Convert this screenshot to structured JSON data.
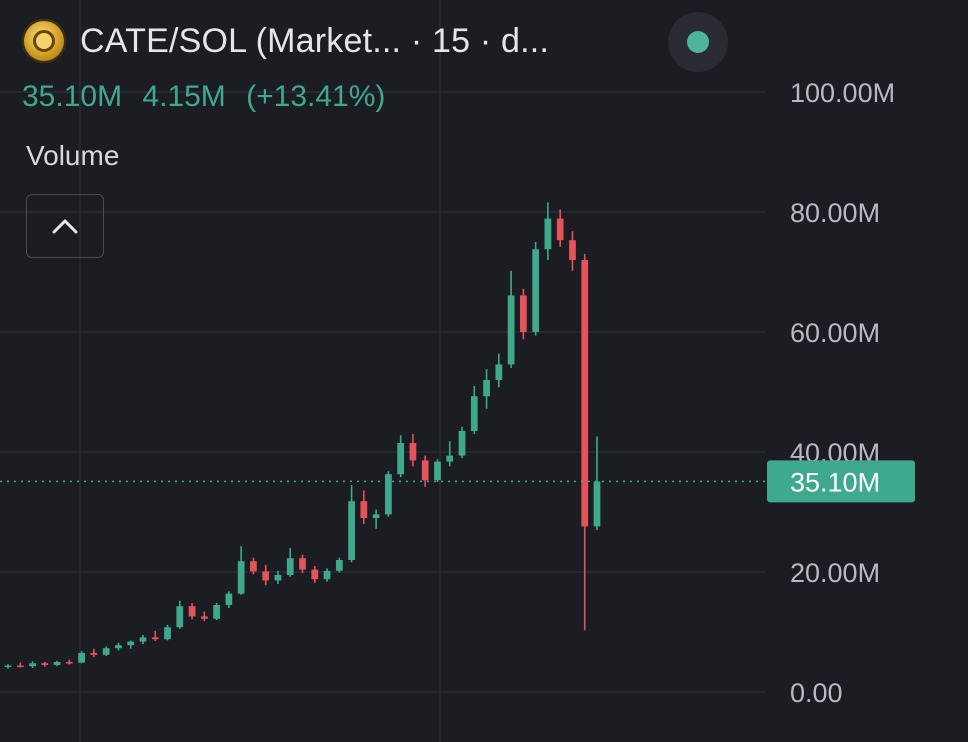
{
  "header": {
    "logo_icon": "coin-logo-icon",
    "title": "CATE/SOL (Market...  · 15 · d...",
    "status_color": "#4db69a"
  },
  "price_row": {
    "last": "35.10M",
    "change": "4.15M",
    "change_pct": "(+13.41%)"
  },
  "volume_label": "Volume",
  "collapse_icon": "chevron-up-icon",
  "colors": {
    "up": "#3fa98e",
    "down": "#e5535b",
    "grid": "#2c2d35",
    "background": "#1c1c23",
    "price_tag": "#3fa98e"
  },
  "chart_data": {
    "type": "candlestick",
    "y_axis_labels": [
      "100.00M",
      "80.00M",
      "60.00M",
      "40.00M",
      "20.00M",
      "0.00"
    ],
    "y_ticks": [
      100,
      80,
      60,
      40,
      20,
      0
    ],
    "ylim": [
      -3,
      112
    ],
    "unit": "M",
    "current_price": 35.1,
    "current_price_label": "35.10M",
    "grid": true,
    "ohlc": [
      [
        4.2,
        4.6,
        3.9,
        4.4
      ],
      [
        4.4,
        4.9,
        4.1,
        4.3
      ],
      [
        4.3,
        5.1,
        4.0,
        4.8
      ],
      [
        4.8,
        5.0,
        4.2,
        4.5
      ],
      [
        4.5,
        5.2,
        4.3,
        5.0
      ],
      [
        5.0,
        5.4,
        4.6,
        4.9
      ],
      [
        4.9,
        6.8,
        4.8,
        6.5
      ],
      [
        6.5,
        7.2,
        5.8,
        6.2
      ],
      [
        6.2,
        7.6,
        6.0,
        7.3
      ],
      [
        7.3,
        8.2,
        6.9,
        7.8
      ],
      [
        7.8,
        8.6,
        7.2,
        8.4
      ],
      [
        8.4,
        9.5,
        8.0,
        9.1
      ],
      [
        9.1,
        10.2,
        8.5,
        8.8
      ],
      [
        8.8,
        11.2,
        8.6,
        10.8
      ],
      [
        10.8,
        15.2,
        10.5,
        14.3
      ],
      [
        14.3,
        14.8,
        12.1,
        12.6
      ],
      [
        12.6,
        13.4,
        11.8,
        12.2
      ],
      [
        12.2,
        14.8,
        12.0,
        14.5
      ],
      [
        14.5,
        16.8,
        14.0,
        16.4
      ],
      [
        16.4,
        24.3,
        16.2,
        21.8
      ],
      [
        21.8,
        22.4,
        19.6,
        20.1
      ],
      [
        20.1,
        21.2,
        17.8,
        18.6
      ],
      [
        18.6,
        20.2,
        18.0,
        19.5
      ],
      [
        19.5,
        24.0,
        19.2,
        22.3
      ],
      [
        22.3,
        22.9,
        19.8,
        20.4
      ],
      [
        20.4,
        21.0,
        18.2,
        18.8
      ],
      [
        18.8,
        20.6,
        18.4,
        20.2
      ],
      [
        20.2,
        22.4,
        19.9,
        22.0
      ],
      [
        22.0,
        34.5,
        21.6,
        31.8
      ],
      [
        31.8,
        33.6,
        28.0,
        29.0
      ],
      [
        29.0,
        30.4,
        27.2,
        29.6
      ],
      [
        29.6,
        36.8,
        29.2,
        36.3
      ],
      [
        36.3,
        42.8,
        35.8,
        41.5
      ],
      [
        41.5,
        43.0,
        37.6,
        38.6
      ],
      [
        38.6,
        39.4,
        34.2,
        35.3
      ],
      [
        35.3,
        38.8,
        35.0,
        38.4
      ],
      [
        38.4,
        41.8,
        37.6,
        39.4
      ],
      [
        39.4,
        44.2,
        39.0,
        43.5
      ],
      [
        43.5,
        51.0,
        43.0,
        49.3
      ],
      [
        49.3,
        53.8,
        47.2,
        52.0
      ],
      [
        52.0,
        56.4,
        50.8,
        54.6
      ],
      [
        54.6,
        70.2,
        54.0,
        66.1
      ],
      [
        66.1,
        67.2,
        58.8,
        60.0
      ],
      [
        60.0,
        75.0,
        59.4,
        73.8
      ],
      [
        73.8,
        81.6,
        72.0,
        78.9
      ],
      [
        78.9,
        80.4,
        74.2,
        75.3
      ],
      [
        75.3,
        76.8,
        70.2,
        72.0
      ],
      [
        72.0,
        73.0,
        10.3,
        27.6
      ],
      [
        27.6,
        42.6,
        27.0,
        35.1
      ]
    ],
    "x": [
      "",
      "",
      "",
      "",
      "",
      "",
      "",
      "",
      "",
      "",
      "",
      "",
      "",
      "",
      "",
      "",
      "",
      "",
      "",
      "",
      "",
      "",
      "",
      "",
      "",
      "",
      "",
      "",
      "",
      "",
      "",
      "",
      "",
      "",
      "",
      "",
      "",
      "",
      "",
      "",
      "",
      "",
      "",
      "",
      "",
      "",
      "",
      "",
      ""
    ]
  }
}
